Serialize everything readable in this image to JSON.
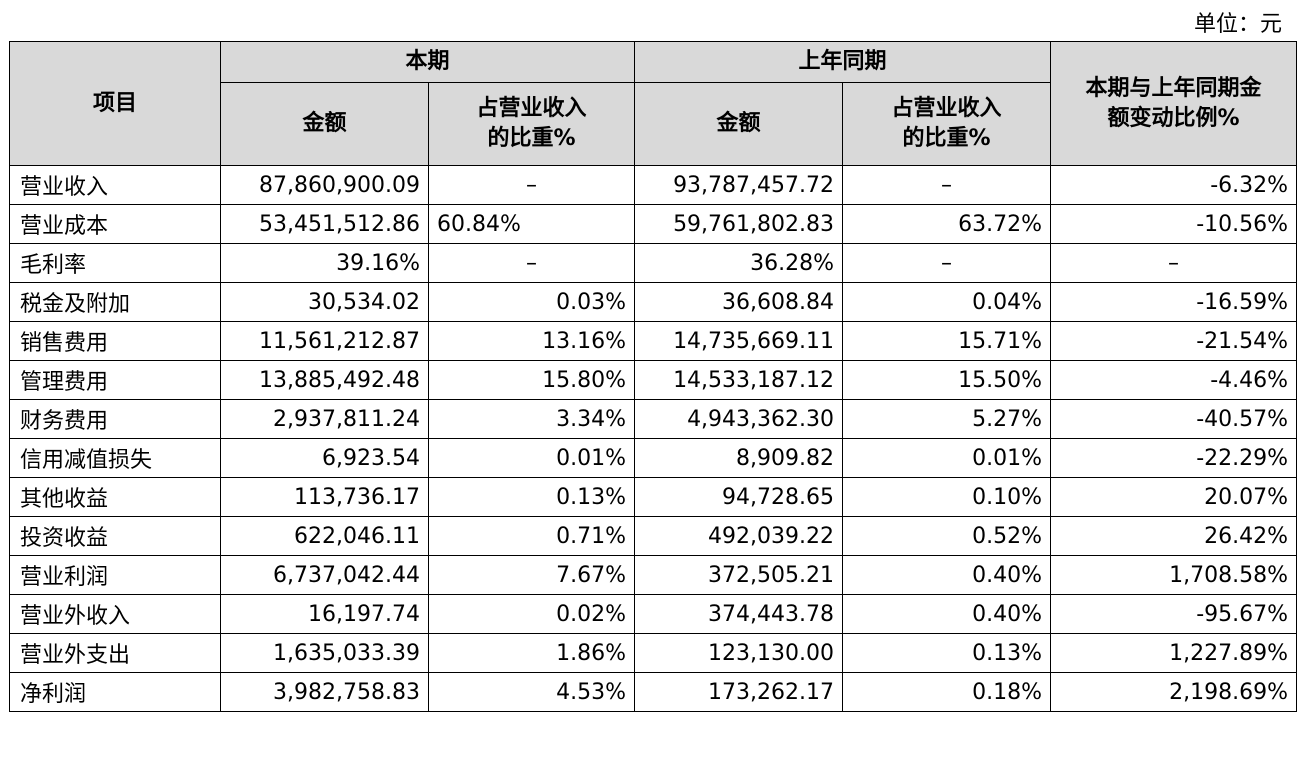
{
  "unit_label": "单位：元",
  "header": {
    "item": "项目",
    "current": "本期",
    "prior": "上年同期",
    "change": "本期与上年同期金额变动比例%",
    "amount": "金额",
    "ratio": "占营业收入的比重%"
  },
  "rows": [
    {
      "item": "营业收入",
      "cur_amount": "87,860,900.09",
      "cur_ratio": "–",
      "prior_amount": "93,787,457.72",
      "prior_ratio": "–",
      "change": "-6.32%"
    },
    {
      "item": "营业成本",
      "cur_amount": "53,451,512.86",
      "cur_ratio": "60.84%",
      "prior_amount": "59,761,802.83",
      "prior_ratio": "63.72%",
      "change": "-10.56%"
    },
    {
      "item": "毛利率",
      "cur_amount": "39.16%",
      "cur_ratio": "–",
      "prior_amount": "36.28%",
      "prior_ratio": "–",
      "change": "–"
    },
    {
      "item": "税金及附加",
      "cur_amount": "30,534.02",
      "cur_ratio": "0.03%",
      "prior_amount": "36,608.84",
      "prior_ratio": "0.04%",
      "change": "-16.59%"
    },
    {
      "item": "销售费用",
      "cur_amount": "11,561,212.87",
      "cur_ratio": "13.16%",
      "prior_amount": "14,735,669.11",
      "prior_ratio": "15.71%",
      "change": "-21.54%"
    },
    {
      "item": "管理费用",
      "cur_amount": "13,885,492.48",
      "cur_ratio": "15.80%",
      "prior_amount": "14,533,187.12",
      "prior_ratio": "15.50%",
      "change": "-4.46%"
    },
    {
      "item": "财务费用",
      "cur_amount": "2,937,811.24",
      "cur_ratio": "3.34%",
      "prior_amount": "4,943,362.30",
      "prior_ratio": "5.27%",
      "change": "-40.57%"
    },
    {
      "item": "信用减值损失",
      "cur_amount": "6,923.54",
      "cur_ratio": "0.01%",
      "prior_amount": "8,909.82",
      "prior_ratio": "0.01%",
      "change": "-22.29%"
    },
    {
      "item": "其他收益",
      "cur_amount": "113,736.17",
      "cur_ratio": "0.13%",
      "prior_amount": "94,728.65",
      "prior_ratio": "0.10%",
      "change": "20.07%"
    },
    {
      "item": "投资收益",
      "cur_amount": "622,046.11",
      "cur_ratio": "0.71%",
      "prior_amount": "492,039.22",
      "prior_ratio": "0.52%",
      "change": "26.42%"
    },
    {
      "item": "营业利润",
      "cur_amount": "6,737,042.44",
      "cur_ratio": "7.67%",
      "prior_amount": "372,505.21",
      "prior_ratio": "0.40%",
      "change": "1,708.58%"
    },
    {
      "item": "营业外收入",
      "cur_amount": "16,197.74",
      "cur_ratio": "0.02%",
      "prior_amount": "374,443.78",
      "prior_ratio": "0.40%",
      "change": "-95.67%"
    },
    {
      "item": "营业外支出",
      "cur_amount": "1,635,033.39",
      "cur_ratio": "1.86%",
      "prior_amount": "123,130.00",
      "prior_ratio": "0.13%",
      "change": "1,227.89%"
    },
    {
      "item": "净利润",
      "cur_amount": "3,982,758.83",
      "cur_ratio": "4.53%",
      "prior_amount": "173,262.17",
      "prior_ratio": "0.18%",
      "change": "2,198.69%"
    }
  ]
}
